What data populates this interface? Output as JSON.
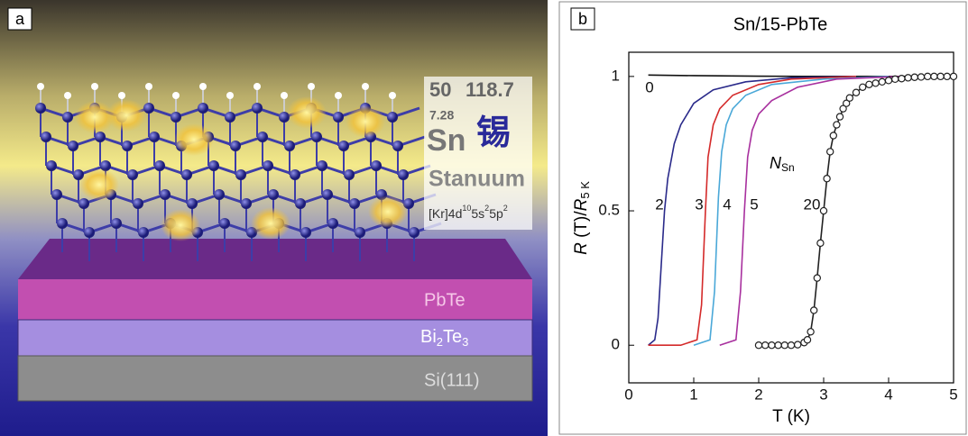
{
  "panel_a": {
    "label": "a",
    "element": {
      "number": "50",
      "mass": "118.7",
      "density": "7.28",
      "symbol": "Sn",
      "chinese": "锡",
      "name": "Stanuum",
      "config": {
        "p1": "[Kr]4d",
        "s1": "10",
        "p2": "5s",
        "s2": "2",
        "p3": "5p",
        "s3": "2"
      }
    },
    "layers": {
      "pbte": "PbTe",
      "bi2te3": {
        "a": "Bi",
        "a_sub": "2",
        "b": "Te",
        "b_sub": "3"
      },
      "si": "Si(111)"
    }
  },
  "chart_data": {
    "type": "line",
    "label": "b",
    "title": "Sn/15-PbTe",
    "x_label": "T (K)",
    "y_label": {
      "r1": "R",
      "mid": " (T)/",
      "r2": "R",
      "sub": "5 K"
    },
    "annotation": {
      "main": "N",
      "sub": "Sn"
    },
    "xlim": [
      0,
      5
    ],
    "xticks": [
      0,
      1,
      2,
      3,
      4,
      5
    ],
    "ylim": [
      -0.14,
      1.09
    ],
    "yticks": [
      0,
      0.5,
      1
    ],
    "series": [
      {
        "name": "0",
        "color": "#111111",
        "x": [
          0.3,
          1,
          2,
          3,
          4,
          5
        ],
        "values": [
          1.005,
          1.003,
          1.001,
          1.0,
          1.0,
          1.0
        ]
      },
      {
        "name": "2",
        "color": "#2a2a8a",
        "x": [
          0.3,
          0.4,
          0.45,
          0.5,
          0.55,
          0.6,
          0.7,
          0.8,
          1.0,
          1.3,
          1.8,
          2.5,
          3.5
        ],
        "values": [
          0,
          0.02,
          0.1,
          0.3,
          0.5,
          0.62,
          0.75,
          0.82,
          0.9,
          0.95,
          0.98,
          0.995,
          1
        ]
      },
      {
        "name": "3",
        "color": "#d42a2a",
        "x": [
          0.3,
          0.8,
          1.05,
          1.12,
          1.18,
          1.22,
          1.3,
          1.4,
          1.6,
          2,
          2.5,
          3.5
        ],
        "values": [
          0,
          0,
          0.02,
          0.15,
          0.5,
          0.7,
          0.82,
          0.88,
          0.93,
          0.97,
          0.99,
          1
        ]
      },
      {
        "name": "4",
        "color": "#4aa8d8",
        "x": [
          1.0,
          1.25,
          1.32,
          1.38,
          1.43,
          1.5,
          1.6,
          1.8,
          2.2,
          3,
          4
        ],
        "values": [
          0,
          0.02,
          0.2,
          0.55,
          0.72,
          0.82,
          0.88,
          0.93,
          0.97,
          0.99,
          1
        ]
      },
      {
        "name": "5",
        "color": "#a8309e",
        "x": [
          1.4,
          1.65,
          1.72,
          1.78,
          1.83,
          1.9,
          2.0,
          2.2,
          2.6,
          3.2,
          4.2
        ],
        "values": [
          0,
          0.02,
          0.2,
          0.5,
          0.7,
          0.8,
          0.86,
          0.91,
          0.96,
          0.99,
          1
        ]
      },
      {
        "name": "20",
        "color": "#222222",
        "markers": true,
        "x": [
          2.0,
          2.1,
          2.2,
          2.3,
          2.4,
          2.5,
          2.6,
          2.7,
          2.75,
          2.8,
          2.85,
          2.9,
          2.95,
          3.0,
          3.05,
          3.1,
          3.15,
          3.2,
          3.25,
          3.3,
          3.35,
          3.4,
          3.5,
          3.6,
          3.7,
          3.8,
          3.9,
          4.0,
          4.1,
          4.2,
          4.3,
          4.4,
          4.5,
          4.6,
          4.7,
          4.8,
          4.9,
          5.0
        ],
        "values": [
          0,
          0,
          0,
          0,
          0,
          0,
          0.002,
          0.01,
          0.02,
          0.05,
          0.13,
          0.25,
          0.38,
          0.5,
          0.62,
          0.72,
          0.78,
          0.82,
          0.85,
          0.88,
          0.9,
          0.92,
          0.94,
          0.96,
          0.97,
          0.975,
          0.98,
          0.985,
          0.99,
          0.992,
          0.995,
          0.997,
          0.998,
          1,
          1,
          1,
          1,
          1
        ]
      }
    ]
  }
}
